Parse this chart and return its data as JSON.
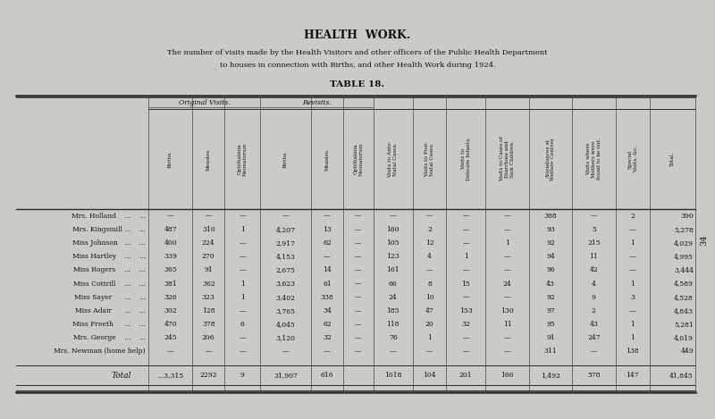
{
  "title": "HEALTH  WORK.",
  "subtitle_line1": "The number of visits made by the Health Visitors and other officers of the Public Health Department",
  "subtitle_line2": "to houses in connection with Births, and other Health Work during 1924.",
  "table_title": "TABLE 18.",
  "bg_color": "#cccac4",
  "page_number": "34",
  "row_names": [
    "Mrs. Holland    ...    ...",
    "Mrs. Kingsmill ...    ...",
    "Miss Johnson   ...    ...",
    "Miss Hartley    ...    ...",
    "Miss Rogers    ...    ...",
    "Miss Cottrill    ...    ...",
    "Miss Sayer      ...    ...",
    "Miss Adair      ...    ...",
    "Miss Freeth     ...    ...",
    "Mrs. George    ...    ...",
    "Mrs. Newman (home help)"
  ],
  "data": [
    [
      "—",
      "—",
      "—",
      "—",
      "—",
      "—",
      "—",
      "—",
      "—",
      "—",
      "388",
      "—",
      "2",
      "390"
    ],
    [
      "487",
      "310",
      "1",
      "4,207",
      "13",
      "—",
      "160",
      "2",
      "—",
      "—",
      "93",
      "5",
      "—",
      "5,278"
    ],
    [
      "400",
      "224",
      "—",
      "2,917",
      "62",
      "—",
      "105",
      "12",
      "—",
      "1",
      "92",
      "215",
      "1",
      "4,029"
    ],
    [
      "339",
      "270",
      "—",
      "4,153",
      "—",
      "—",
      "123",
      "4",
      "1",
      "—",
      "94",
      "11",
      "—",
      "4,995"
    ],
    [
      "365",
      "91",
      "—",
      "2,675",
      "14",
      "—",
      "161",
      "—",
      "—",
      "—",
      "96",
      "42",
      "—",
      "3,444"
    ],
    [
      "381",
      "362",
      "1",
      "3,623",
      "61",
      "—",
      "66",
      "8",
      "15",
      "24",
      "43",
      "4",
      "1",
      "4,589"
    ],
    [
      "326",
      "323",
      "1",
      "3,402",
      "338",
      "—",
      "24",
      "10",
      "—",
      "—",
      "92",
      "9",
      "3",
      "4,528"
    ],
    [
      "302",
      "128",
      "—",
      "3,765",
      "34",
      "—",
      "185",
      "47",
      "153",
      "130",
      "97",
      "2",
      "—",
      "4,843"
    ],
    [
      "470",
      "378",
      "6",
      "4,045",
      "62",
      "—",
      "118",
      "20",
      "32",
      "11",
      "95",
      "43",
      "1",
      "5,281"
    ],
    [
      "245",
      "206",
      "—",
      "3,120",
      "32",
      "—",
      "76",
      "1",
      "—",
      "—",
      "91",
      "247",
      "1",
      "4,019"
    ],
    [
      "—",
      "—",
      "—",
      "—",
      "—",
      "—",
      "—",
      "—",
      "—",
      "—",
      "311",
      "—",
      "138",
      "449"
    ]
  ],
  "total_row_label": "Total",
  "total_row": [
    "...3,315",
    "2292",
    "9",
    "31,907",
    "616",
    "",
    "1018",
    "104",
    "201",
    "166",
    "1,492",
    "578",
    "147",
    "41,845"
  ],
  "header_texts": [
    "Births.",
    "Measles.",
    "Ophthalmia\nNeonatorum",
    "Births.",
    "Measles.",
    "Ophthalmia\nNeonatorum",
    "Visits to Ante-\nNatal Cases.",
    "Visits to Post-\nNatal Cases.",
    "Visits to\nDelicate Infants.",
    "Visits to Cases of\nDiarrhœa and\nSick Children.",
    "Attendances at\nWelfare Centres",
    "Visits where\nMothers were\nfound to be out.",
    "Special\nVisits, &c.",
    "Total."
  ]
}
